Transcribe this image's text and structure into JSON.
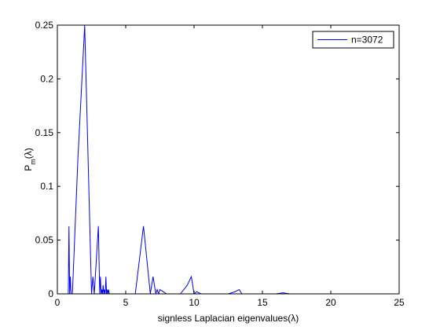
{
  "chart_data": {
    "type": "line",
    "title": "",
    "xlabel": "signless Laplacian eigenvalues(λ)",
    "ylabel_main": "P",
    "ylabel_sub": "m",
    "ylabel_tail": "(λ)",
    "xlim": [
      0,
      25
    ],
    "ylim": [
      0,
      0.25
    ],
    "xticks": [
      0,
      5,
      10,
      15,
      20,
      25
    ],
    "yticks": [
      0,
      0.05,
      0.1,
      0.15,
      0.2,
      0.25
    ],
    "xtick_labels": [
      "0",
      "5",
      "10",
      "15",
      "20",
      "25"
    ],
    "ytick_labels": [
      "0",
      "0.05",
      "0.1",
      "0.15",
      "0.2",
      "0.25"
    ],
    "grid": false,
    "legend_position": "top-right",
    "line_color": "#0000ff",
    "series": [
      {
        "name": "n=3072",
        "x": [
          0.8,
          0.85,
          0.9,
          0.95,
          1.0,
          1.05,
          1.1,
          1.5,
          2.0,
          2.5,
          2.6,
          2.7,
          3.0,
          3.1,
          3.15,
          3.2,
          3.25,
          3.3,
          3.35,
          3.4,
          3.45,
          3.5,
          3.55,
          3.6,
          3.65,
          3.7,
          3.75,
          3.8,
          4.0,
          5.0,
          5.5,
          5.7,
          6.3,
          6.8,
          7.0,
          7.2,
          7.3,
          7.4,
          7.5,
          8.0,
          9.0,
          9.5,
          9.8,
          10.0,
          10.2,
          10.5,
          11.0,
          12.0,
          12.5,
          13.0,
          13.3,
          13.5,
          14.0,
          16.0,
          16.5,
          17.0,
          20.0
        ],
        "y": [
          0.0,
          0.063,
          0.0,
          0.016,
          0.0,
          0.0,
          0.0,
          0.125,
          0.25,
          0.0,
          0.016,
          0.0,
          0.063,
          0.0,
          0.016,
          0.0,
          0.004,
          0.0,
          0.008,
          0.0,
          0.004,
          0.0,
          0.016,
          0.0,
          0.004,
          0.0,
          0.004,
          0.0,
          0.0,
          0.0,
          0.0,
          0.0,
          0.063,
          0.0,
          0.016,
          0.0,
          0.004,
          0.0,
          0.004,
          0.0,
          0.0,
          0.008,
          0.016,
          0.0,
          0.002,
          0.0,
          0.0,
          0.0,
          0.0,
          0.002,
          0.004,
          0.0,
          0.0,
          0.0,
          0.001,
          0.0,
          0.0
        ]
      }
    ]
  }
}
